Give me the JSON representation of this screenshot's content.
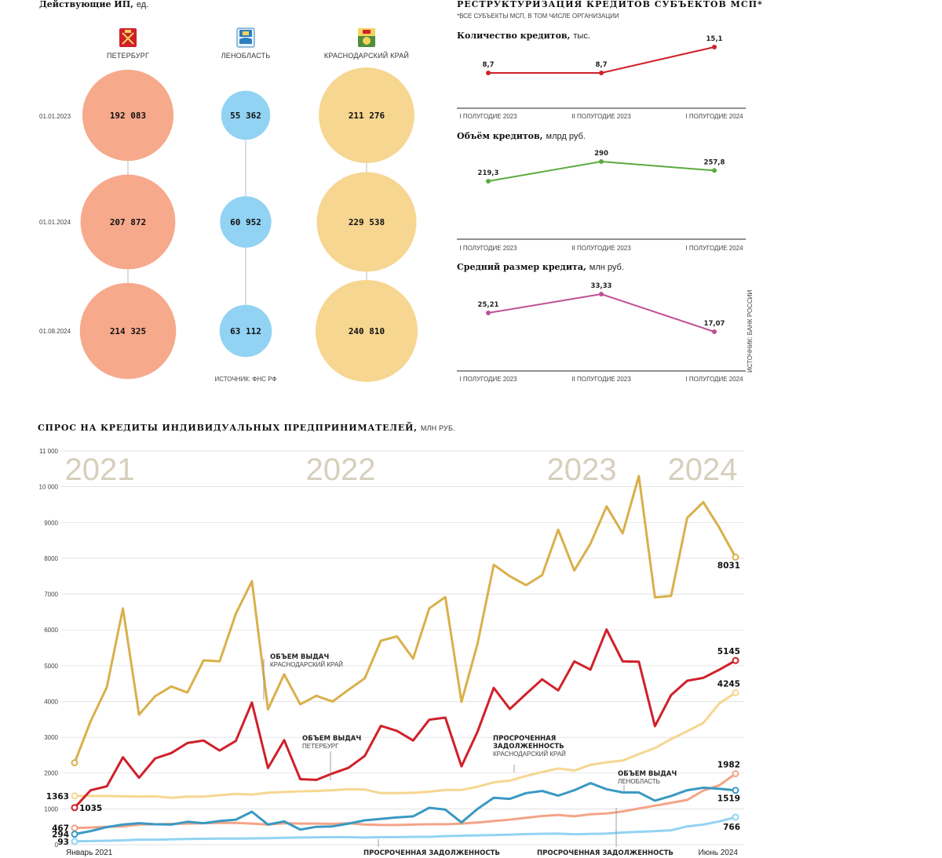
{
  "ip_panel": {
    "title": "Действующие ИП,",
    "unit": "ед.",
    "regions": [
      "ПЕТЕРБУРГ",
      "ЛЕНОБЛАСТЬ",
      "КРАСНОДАРСКИЙ КРАЙ"
    ],
    "dates": [
      "01.01.2023",
      "01.01.2024",
      "01.08.2024"
    ],
    "values_text": [
      [
        "192 083",
        "55 362",
        "211 276"
      ],
      [
        "207 872",
        "60 952",
        "229 538"
      ],
      [
        "214 325",
        "63 112",
        "240 810"
      ]
    ],
    "values": [
      [
        192083,
        55362,
        211276
      ],
      [
        207872,
        60952,
        229538
      ],
      [
        214325,
        63112,
        240810
      ]
    ],
    "colors": [
      "#f7a98c",
      "#92d3f3",
      "#f6d690"
    ],
    "source": "ИСТОЧНИК: ФНС РФ",
    "icons": [
      "spb-coat-of-arms-icon",
      "lenoblast-coat-of-arms-icon",
      "krasnodar-coat-of-arms-icon"
    ]
  },
  "restructuring": {
    "title": "РЕСТРУКТУРИЗАЦИЯ КРЕДИТОВ СУБЪЕКТОВ МСП*",
    "note": "*ВСЕ СУБЪЕКТЫ МСП, В ТОМ ЧИСЛЕ ОРГАНИЗАЦИИ",
    "source": "ИСТОЧНИК: БАНК РОССИИ",
    "periods": [
      "I ПОЛУГОДИЕ 2023",
      "II ПОЛУГОДИЕ 2023",
      "I ПОЛУГОДИЕ 2024"
    ],
    "charts": [
      {
        "title": "Количество кредитов,",
        "unit": "тыс.",
        "values": [
          8.7,
          8.7,
          15.1
        ],
        "labels": [
          "8,7",
          "8,7",
          "15,1"
        ],
        "color": "#d0202a"
      },
      {
        "title": "Объём кредитов,",
        "unit": "млрд руб.",
        "values": [
          219.3,
          290,
          257.8
        ],
        "labels": [
          "219,3",
          "290",
          "257,8"
        ],
        "color": "#5aab3d"
      },
      {
        "title": "Средний размер кредита,",
        "unit": "млн руб.",
        "values": [
          25.21,
          33.33,
          17.07
        ],
        "labels": [
          "25,21",
          "33,33",
          "17,07"
        ],
        "color": "#c04f95"
      }
    ]
  },
  "chart_data": {
    "type": "line",
    "title": "СПРОС НА КРЕДИТЫ ИНДИВИДУАЛЬНЫХ ПРЕДПРИНИМАТЕЛЕЙ,",
    "unit": "МЛН РУБ.",
    "ylim": [
      0,
      11000
    ],
    "yticks": [
      0,
      1000,
      2000,
      3000,
      4000,
      5000,
      6000,
      7000,
      8000,
      9000,
      10000,
      11000
    ],
    "ytick_labels": [
      "0",
      "1000",
      "2000",
      "3000",
      "4000",
      "5000",
      "6000",
      "7000",
      "8000",
      "9000",
      "10 000",
      "11 000"
    ],
    "years": [
      "2021",
      "2022",
      "2023",
      "2024"
    ],
    "x_start_label": "Январь 2021",
    "x_end_label": "Июнь 2024",
    "grid": true,
    "series": [
      {
        "key": "krasnodar",
        "color": "#d9b04a",
        "values": [
          2287,
          3450,
          4400,
          6600,
          3630,
          4150,
          4420,
          4250,
          5150,
          5120,
          6450,
          7360,
          3780,
          4760,
          3920,
          4160,
          4000,
          4330,
          4650,
          5700,
          5820,
          5200,
          6600,
          6920,
          3990,
          5620,
          7820,
          7500,
          7250,
          7530,
          8800,
          7660,
          8410,
          9450,
          8700,
          10300,
          6910,
          6950,
          9130,
          9570,
          8850,
          8031
        ],
        "end_label": "8031",
        "start_label": ""
      },
      {
        "key": "spb",
        "color": "#d0202a",
        "values": [
          1035,
          1520,
          1630,
          2440,
          1870,
          2410,
          2560,
          2840,
          2910,
          2630,
          2900,
          3970,
          2140,
          2920,
          1830,
          1810,
          1990,
          2150,
          2480,
          3320,
          3180,
          2910,
          3490,
          3550,
          2190,
          3160,
          4380,
          3790,
          4210,
          4620,
          4310,
          5120,
          4890,
          6010,
          5120,
          5110,
          3310,
          4180,
          4580,
          4660,
          4890,
          5145
        ],
        "end_label": "5145",
        "start_label": "1035"
      },
      {
        "key": "krasnodar_overdue",
        "color": "#f6d690",
        "values": [
          1363,
          1360,
          1360,
          1350,
          1340,
          1350,
          1310,
          1340,
          1340,
          1380,
          1420,
          1400,
          1450,
          1470,
          1490,
          1500,
          1520,
          1550,
          1540,
          1440,
          1440,
          1450,
          1480,
          1530,
          1530,
          1620,
          1740,
          1790,
          1920,
          2030,
          2130,
          2070,
          2230,
          2300,
          2350,
          2530,
          2700,
          2950,
          3170,
          3400,
          3950,
          4245
        ],
        "end_label": "4245",
        "start_label": "1363"
      },
      {
        "key": "spb_overdue",
        "color": "#f4a488",
        "values": [
          467,
          480,
          500,
          510,
          560,
          570,
          580,
          590,
          600,
          610,
          610,
          590,
          560,
          600,
          590,
          590,
          580,
          600,
          560,
          550,
          550,
          560,
          570,
          570,
          590,
          620,
          660,
          700,
          750,
          800,
          830,
          790,
          850,
          870,
          930,
          1010,
          1090,
          1170,
          1250,
          1510,
          1660,
          1982
        ],
        "end_label": "1982",
        "start_label": "467"
      },
      {
        "key": "lenoblast",
        "color": "#3a99c2",
        "values": [
          294,
          380,
          490,
          560,
          600,
          570,
          560,
          640,
          600,
          660,
          700,
          920,
          560,
          650,
          420,
          500,
          510,
          590,
          680,
          720,
          760,
          790,
          1030,
          980,
          620,
          1000,
          1310,
          1280,
          1440,
          1500,
          1370,
          1520,
          1720,
          1550,
          1460,
          1460,
          1230,
          1360,
          1520,
          1590,
          1560,
          1519
        ],
        "end_label": "1519",
        "start_label": "294"
      },
      {
        "key": "lenoblast_overdue",
        "color": "#92d3f3",
        "values": [
          93,
          100,
          110,
          120,
          140,
          140,
          150,
          160,
          165,
          170,
          170,
          175,
          180,
          190,
          200,
          205,
          210,
          210,
          200,
          210,
          210,
          220,
          220,
          240,
          250,
          260,
          270,
          280,
          295,
          305,
          310,
          290,
          300,
          310,
          340,
          360,
          380,
          400,
          510,
          560,
          650,
          766
        ],
        "end_label": "766",
        "start_label": "93"
      }
    ],
    "annotations": [
      {
        "line1": "ОБЪЕМ ВЫДАЧ",
        "line2": "КРАСНОДАРСКИЙ КРАЙ"
      },
      {
        "line1": "ОБЪЕМ ВЫДАЧ",
        "line2": "ПЕТЕРБУРГ"
      },
      {
        "line1": "ПРОСРОЧЕННАЯ",
        "line1b": "ЗАДОЛЖЕННОСТЬ",
        "line2": "КРАСНОДАРСКИЙ КРАЙ"
      },
      {
        "line1": "ОБЪЕМ ВЫДАЧ",
        "line2": "ЛЕНОБЛАСТЬ"
      },
      {
        "line1": "ПРОСРОЧЕННАЯ ЗАДОЛЖЕННОСТЬ"
      },
      {
        "line1": "ПРОСРОЧЕННАЯ ЗАДОЛЖЕННОСТЬ"
      }
    ]
  }
}
